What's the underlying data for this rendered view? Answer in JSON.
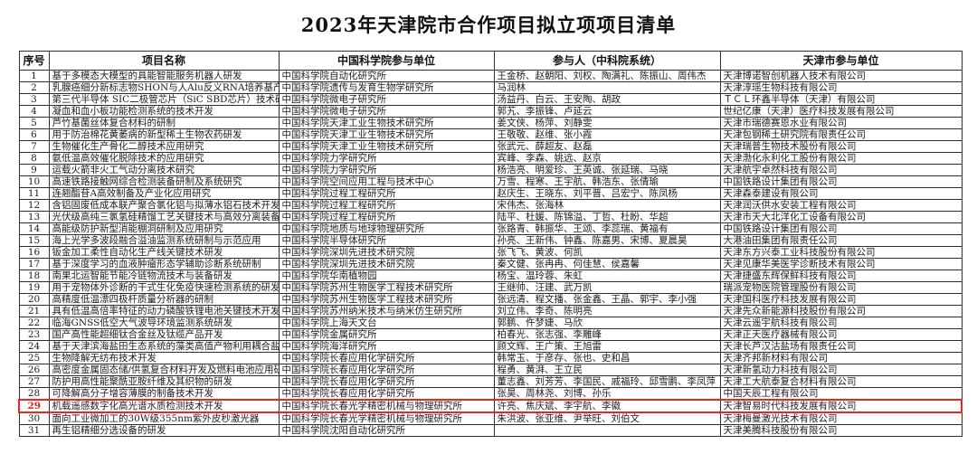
{
  "title": "2023年天津院市合作项目拟立项项目清单",
  "table": {
    "headers": [
      "序号",
      "项目名称",
      "中国科学院参与单位",
      "参与人（中科院系统）",
      "天津市参与单位"
    ],
    "highlighted_row": 29,
    "highlight_color": "#e8281e",
    "rows": [
      {
        "no": "1",
        "project": "基于多模态大模型的具能智能服务机器人研发",
        "cas_unit": "中国科学院自动化研究所",
        "participants": "王金桥、赵朝阳、刘权、陶满礼、陈振山、周伟杰",
        "tianjin_unit": "天津博诺智创机器人技术有限公司"
      },
      {
        "no": "2",
        "project": "乳腺癌细分新标志物SHON与人Alu反义RNA培养基产品的",
        "cas_unit": "中国科学院遗传与发育生物学研究所",
        "participants": "马润林",
        "tianjin_unit": "天津淳瑶生物科技有限公司"
      },
      {
        "no": "3",
        "project": "第三代半导体 SIC二极管芯片（SiC SBD芯片）技术研",
        "cas_unit": "中国科学院微电子研究所",
        "participants": "汤益丹、白云、王安陶、胡政",
        "tianjin_unit": "ＴＣＬ环鑫半导体（天津）有限公司"
      },
      {
        "no": "4",
        "project": "凝血和血小板功能检测系统的技术开发",
        "cas_unit": "中国科学院微电子研究所",
        "participants": "郭艽、李振锋、卢延云",
        "tianjin_unit": "世纪亿康（天津）医疗科技发展有限公司"
      },
      {
        "no": "5",
        "project": "芦竹基菌丝体复合材料的研制",
        "cas_unit": "中国科学院天津工业生物技术研究所",
        "participants": "姜文侠、杨萍、刘静雯",
        "tianjin_unit": "天津市瑞德赛恩水业有限公司"
      },
      {
        "no": "6",
        "project": "用于防治棉花黄萎病的新型稀土生物农药研发",
        "cas_unit": "中国科学院天津工业生物技术研究所",
        "participants": "王敬敬、赵维、张小霞",
        "tianjin_unit": "天津包钢稀土研究院有限责任公司"
      },
      {
        "no": "7",
        "project": "生物催化生产骨化二醇技术应用研究",
        "cas_unit": "中国科学院天津工业生物技术研究所",
        "participants": "张武元、薛超友、赵磊",
        "tianjin_unit": "天津瑞普生物技术股份有限公司"
      },
      {
        "no": "8",
        "project": "氨低温高效催化脱除技术的应用研究",
        "cas_unit": "中国科学院力学研究所",
        "participants": "宾峰、李森、姚远、赵京",
        "tianjin_unit": "天津渤化永利化工股份有限公司"
      },
      {
        "no": "9",
        "project": "运载火箭非火工气动分离技术研究",
        "cas_unit": "中国科学院力学研究所",
        "participants": "杨浩亮、明爱珍、王英诚、张延瑞、马晓",
        "tianjin_unit": "天津航宇卓然科技有限公司"
      },
      {
        "no": "10",
        "project": "高速铁路接触网综合检测装备研制及系统研究",
        "cas_unit": "中国科学院空间应用工程与技术中心",
        "participants": "万雪、程寒、王宇航、韩浩东、张倩瑜",
        "tianjin_unit": "中国铁路设计集团有限公司"
      },
      {
        "no": "11",
        "project": "连翘酯苷A高效制备及产业化应用研究",
        "cas_unit": "中国科学院过程工程研究所",
        "participants": "赵庆生、王晓东、刘平晋、吕宏宁、陈凤杨",
        "tianjin_unit": "天津森泰建设有限公司"
      },
      {
        "no": "12",
        "project": "含铝固废低成本联产聚合氯化铝与拟薄水铝石技术开发",
        "cas_unit": "中国科学院过程工程研究所",
        "participants": "宋伟杰、张海林",
        "tianjin_unit": "天津润沃供水安装工程有限公司"
      },
      {
        "no": "13",
        "project": "光伏级高纯三氯氢硅精馏工艺关键技术与高效分离装备",
        "cas_unit": "中国科学院过程工程研究所",
        "participants": "陆平、杜媛、陈锦溢、丁哲、杜盼、华超",
        "tianjin_unit": "天津市天大北洋化工设备有限公司"
      },
      {
        "no": "14",
        "project": "高能级防护新型消能棚洞研制及应用研究",
        "cas_unit": "中国科学院地质与地球物理研究所",
        "participants": "张路青、韩振华、王颂、李蕊瑞、黄福有",
        "tianjin_unit": "中国铁路设计集团有限公司"
      },
      {
        "no": "15",
        "project": "海上光学多波段融合溢油监测系统研制与示范应用",
        "cas_unit": "中国科学院半导体研究所",
        "participants": "孙亮、王新伟、钟鑫、陈嘉男、宋博、夏晨昊",
        "tianjin_unit": "大港油田集团有限责任公司"
      },
      {
        "no": "16",
        "project": "钣金加工柔性自动化生产线关键技术研发",
        "cas_unit": "中国科学院深圳先进技术研究院",
        "participants": "张飞飞、黄波、何凯",
        "tianjin_unit": "天津东方兴泰工业科技股份有限公司"
      },
      {
        "no": "17",
        "project": "基于深度学习的血液肿瘤形态学辅助诊断系统研制",
        "cas_unit": "中国科学院深圳先进技术研究院",
        "participants": "秦文健、张冉冉、何佳慧、侯嘉馨",
        "tianjin_unit": "天津见康华美医学诊断技术有限公司"
      },
      {
        "no": "18",
        "project": "南果北运智能节能冷链物流技术与装备研发",
        "cas_unit": "中国科学院华南植物园",
        "participants": "杨宝、温玲蓉、朱虹",
        "tianjin_unit": "天津捷盛东辉保鲜科技有限公司"
      },
      {
        "no": "19",
        "project": "用于宠物体外诊断的干式生化免疫快速检测系统的研发",
        "cas_unit": "中国科学院苏州生物医学工程技术研究所",
        "participants": "王继帅、汪建、武万凯",
        "tianjin_unit": "瑞派宠物医院管理股份有限公司"
      },
      {
        "no": "20",
        "project": "高精度低温漂四极杆质量分析器的研制",
        "cas_unit": "中国科学院苏州生物医学工程技术研究所",
        "participants": "张远清、程文播、张金鑫、王晶、郭宇、李小强",
        "tianjin_unit": "天津国科医疗科技发展有限公司"
      },
      {
        "no": "21",
        "project": "具有低温高倍率特征的动力磷酸铁锂电池关键技术开发",
        "cas_unit": "中国科学院苏州纳米技术与纳米仿生研究所",
        "participants": "刘立伟、李奇、陈明亮",
        "tianjin_unit": "天津先众新能源科技股份有限公司"
      },
      {
        "no": "22",
        "project": "临海GNSS低空大气波导环境监测系统研发",
        "cas_unit": "中国科学院上海天文台",
        "participants": "郭鹏、仵梦婕、马欣",
        "tianjin_unit": "天津云遥宇航科技有限公司"
      },
      {
        "no": "23",
        "project": "国产高性能超细钛合金丝及钛缆产品开发",
        "cas_unit": "中国科学院金属研究所",
        "participants": "柏春光、张志强、李雕峰",
        "tianjin_unit": "天津正天医疗器械有限公司"
      },
      {
        "no": "24",
        "project": "基于天津滨海盐田生态系统的藻类高值产物利用耦合盐",
        "cas_unit": "中国科学院海洋研究所",
        "participants": "顾文辉、王广策、王旭雷",
        "tianjin_unit": "天津长芦汉沽盐场有限责任公司"
      },
      {
        "no": "25",
        "project": "生物降解无纺布技术开发",
        "cas_unit": "中国科学院长春应用化学研究所",
        "participants": "韩常玉、于彦存、张也、史和昌",
        "tianjin_unit": "天津齐邦新材料有限公司"
      },
      {
        "no": "26",
        "project": "高密度金属固态储/供氢复合材料开发及燃料电池应用研",
        "cas_unit": "中国科学院长春应用化学研究所",
        "participants": "程勇、黄湃、王立民",
        "tianjin_unit": "天津新氢动力科技有限公司"
      },
      {
        "no": "27",
        "project": "防护用高性能聚酰亚胺纤维及其织物的研发",
        "cas_unit": "中国科学院长春应用化学研究所",
        "participants": "董志鑫、刘芳芳、李国民、戚福玲、邱雪鹏、李凤萍",
        "tianjin_unit": "天津工大航泰复合材料有限公司"
      },
      {
        "no": "28",
        "project": "可降解高分子增容薄膜的制备技术开发",
        "cas_unit": "中国科学院长春应用化学研究所",
        "participants": "张昊、周林尧、刘博、孙乐",
        "tianjin_unit": "中国天辰工程有限公司"
      },
      {
        "no": "29",
        "project": "机载遥感数字化高光谱水质检测技术开发",
        "cas_unit": "中国科学院长春光学精密机械与物理研究所",
        "participants": "许亮、焦庆斌、李宇航、李徽",
        "tianjin_unit": "天津智易时代科技发展有限公司"
      },
      {
        "no": "30",
        "project": "面向工业微加工的30W级355nm紫外皮秒激光器",
        "cas_unit": "中国科学院长春光学精密机械与物理研究所",
        "participants": "朱洪波、张亚维、尹举旺、刘伯文",
        "tianjin_unit": "天津梅曼激光技术有限公司"
      },
      {
        "no": "31",
        "project": "再生铝精细分选设备的研发",
        "cas_unit": "中国科学院沈阳自动化研究所",
        "participants": "",
        "tianjin_unit": "天津美腾科技股份有限公司"
      }
    ]
  }
}
